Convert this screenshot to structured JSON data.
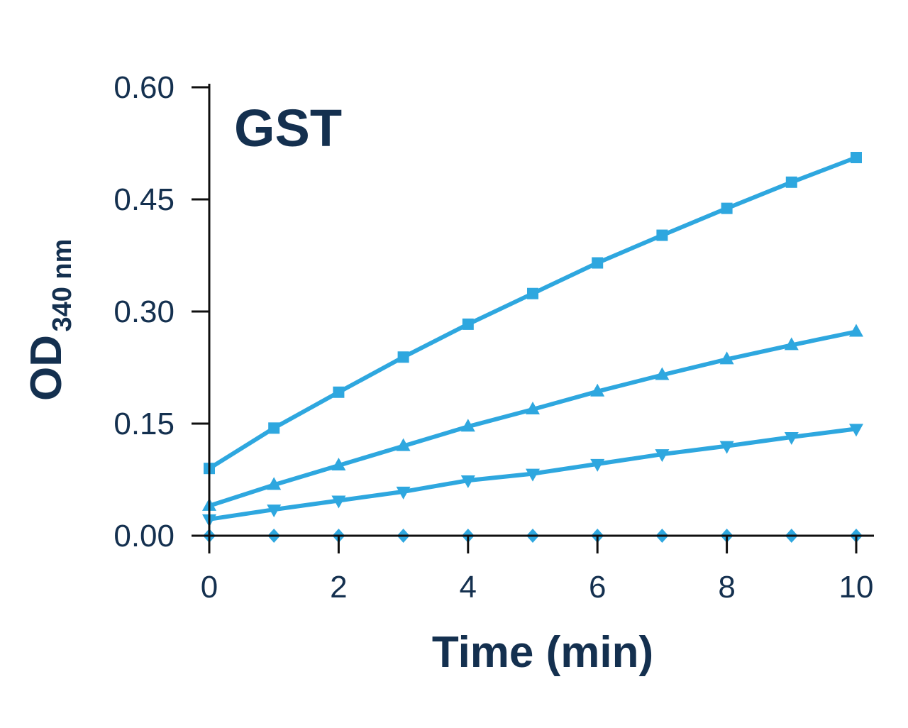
{
  "chart_data": {
    "type": "line",
    "title": "GST",
    "xlabel": "Time (min)",
    "ylabel_main": "OD",
    "ylabel_sub": "340 nm",
    "xlim": [
      0,
      10
    ],
    "ylim": [
      0,
      0.6
    ],
    "xticks": [
      0,
      2,
      4,
      6,
      8,
      10
    ],
    "xtick_labels": [
      "0",
      "2",
      "4",
      "6",
      "8",
      "10"
    ],
    "yticks": [
      0,
      0.15,
      0.3,
      0.45,
      0.6
    ],
    "ytick_labels": [
      "0.00",
      "0.15",
      "0.30",
      "0.45",
      "0.60"
    ],
    "grid": false,
    "legend": "none",
    "line_color": "#2ea7df",
    "text_color": "#14304f",
    "series": [
      {
        "marker": "square",
        "x": [
          0,
          1,
          2,
          3,
          4,
          5,
          6,
          7,
          8,
          9,
          10
        ],
        "values": [
          0.09,
          0.144,
          0.192,
          0.239,
          0.283,
          0.324,
          0.365,
          0.402,
          0.438,
          0.473,
          0.506
        ]
      },
      {
        "marker": "triangle-up",
        "x": [
          0,
          1,
          2,
          3,
          4,
          5,
          6,
          7,
          8,
          9,
          10
        ],
        "values": [
          0.04,
          0.068,
          0.094,
          0.12,
          0.146,
          0.169,
          0.193,
          0.215,
          0.236,
          0.255,
          0.273
        ]
      },
      {
        "marker": "triangle-down",
        "x": [
          0,
          1,
          2,
          3,
          4,
          5,
          6,
          7,
          8,
          9,
          10
        ],
        "values": [
          0.022,
          0.035,
          0.047,
          0.059,
          0.074,
          0.083,
          0.096,
          0.109,
          0.12,
          0.132,
          0.143
        ]
      },
      {
        "marker": "diamond",
        "x": [
          0,
          1,
          2,
          3,
          4,
          5,
          6,
          7,
          8,
          9,
          10
        ],
        "values": [
          0.0,
          0.0,
          0.0,
          0.0,
          0.0,
          0.0,
          0.0,
          0.0,
          0.0,
          0.0,
          0.0
        ]
      }
    ]
  }
}
